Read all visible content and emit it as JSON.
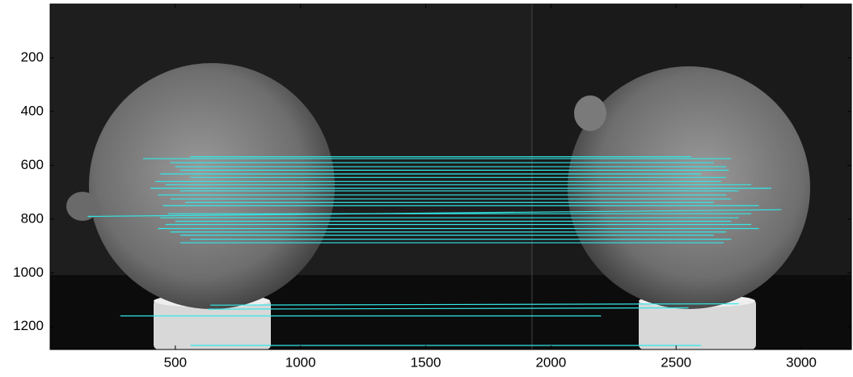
{
  "chart_data": {
    "type": "matches",
    "color": "#33e8e8",
    "xlim": [
      0,
      3200
    ],
    "ylim": [
      0,
      1285
    ],
    "y_reversed": true,
    "xticks": [
      500,
      1000,
      1500,
      2000,
      2500,
      3000
    ],
    "yticks": [
      200,
      400,
      600,
      800,
      1000,
      1200
    ],
    "matches": [
      {
        "x": [
          371,
          2720
        ],
        "y": [
          575,
          575
        ]
      },
      {
        "x": [
          560,
          2560
        ],
        "y": [
          568,
          568
        ]
      },
      {
        "x": [
          480,
          2650
        ],
        "y": [
          590,
          590
        ]
      },
      {
        "x": [
          500,
          2700
        ],
        "y": [
          605,
          605
        ]
      },
      {
        "x": [
          520,
          2710
        ],
        "y": [
          618,
          618
        ]
      },
      {
        "x": [
          440,
          2600
        ],
        "y": [
          632,
          632
        ]
      },
      {
        "x": [
          560,
          2700
        ],
        "y": [
          645,
          645
        ]
      },
      {
        "x": [
          420,
          2680
        ],
        "y": [
          660,
          660
        ]
      },
      {
        "x": [
          460,
          2800
        ],
        "y": [
          672,
          672
        ]
      },
      {
        "x": [
          400,
          2880
        ],
        "y": [
          685,
          685
        ]
      },
      {
        "x": [
          520,
          2750
        ],
        "y": [
          695,
          695
        ]
      },
      {
        "x": [
          430,
          2700
        ],
        "y": [
          710,
          710
        ]
      },
      {
        "x": [
          480,
          2720
        ],
        "y": [
          725,
          725
        ]
      },
      {
        "x": [
          540,
          2650
        ],
        "y": [
          738,
          738
        ]
      },
      {
        "x": [
          450,
          2830
        ],
        "y": [
          750,
          750
        ]
      },
      {
        "x": [
          150,
          2920
        ],
        "y": [
          790,
          765
        ]
      },
      {
        "x": [
          470,
          2800
        ],
        "y": [
          780,
          780
        ]
      },
      {
        "x": [
          440,
          2750
        ],
        "y": [
          795,
          795
        ]
      },
      {
        "x": [
          500,
          2720
        ],
        "y": [
          808,
          808
        ]
      },
      {
        "x": [
          460,
          2800
        ],
        "y": [
          820,
          820
        ]
      },
      {
        "x": [
          430,
          2830
        ],
        "y": [
          835,
          835
        ]
      },
      {
        "x": [
          480,
          2700
        ],
        "y": [
          848,
          848
        ]
      },
      {
        "x": [
          520,
          2650
        ],
        "y": [
          860,
          860
        ]
      },
      {
        "x": [
          560,
          2720
        ],
        "y": [
          875,
          875
        ]
      },
      {
        "x": [
          520,
          2690
        ],
        "y": [
          888,
          888
        ]
      },
      {
        "x": [
          640,
          2750
        ],
        "y": [
          1120,
          1115
        ]
      },
      {
        "x": [
          630,
          2550
        ],
        "y": [
          1135,
          1130
        ]
      },
      {
        "x": [
          280,
          2200
        ],
        "y": [
          1160,
          1160
        ]
      },
      {
        "x": [
          560,
          2600
        ],
        "y": [
          1270,
          1270
        ]
      }
    ]
  }
}
